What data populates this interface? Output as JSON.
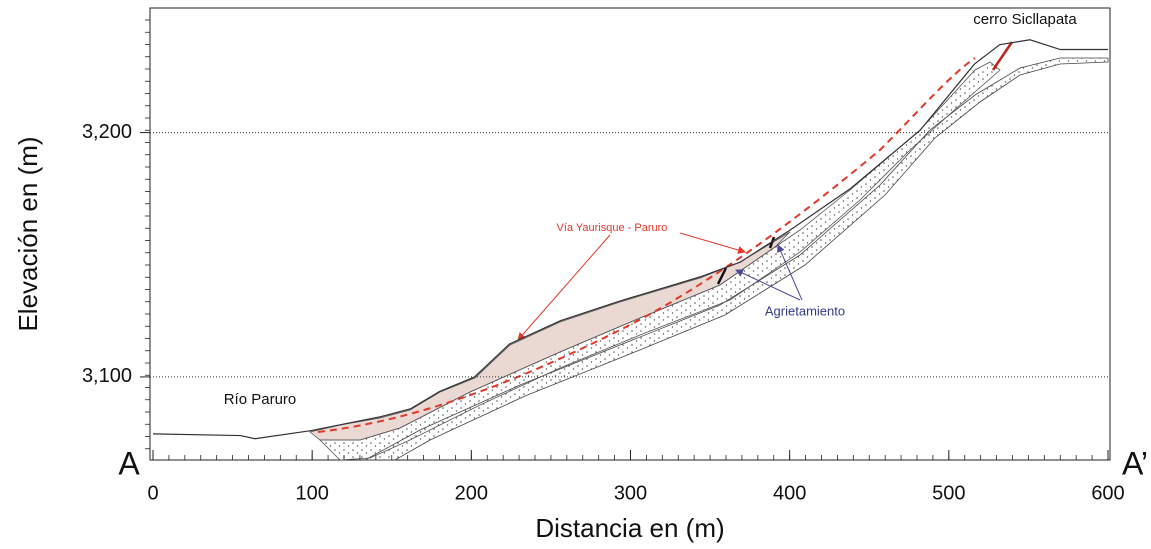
{
  "chart_data": {
    "type": "profile",
    "x_label": "Distancia en (m)",
    "y_label": "Elevación en (m)",
    "x": [
      0,
      55,
      64,
      99,
      143,
      162,
      180,
      202,
      224,
      256,
      293,
      344,
      369,
      400,
      438,
      482,
      516,
      532,
      551,
      570,
      600
    ],
    "values": [
      3076.7,
      3076,
      3074.7,
      3078,
      3083.7,
      3087,
      3094,
      3100,
      3113.5,
      3123,
      3131,
      3141,
      3147,
      3160,
      3177,
      3201,
      3228,
      3236,
      3238,
      3234,
      3234
    ],
    "color": "#333333",
    "xlim": [
      0,
      600
    ],
    "xticks": [
      0,
      100,
      200,
      300,
      400,
      500,
      600
    ],
    "ylim": [
      3066,
      3251
    ],
    "yticks": [
      {
        "value": 3100,
        "label": "3,100"
      },
      {
        "value": 3200,
        "label": "3,200"
      }
    ],
    "grid": true,
    "annotations": {
      "start": "A",
      "end": "A’",
      "river": "Río Paruro",
      "hill": "cerro Sicllapata",
      "road": "Vía Yaurisque - Paruro",
      "cracks": "Agrietamiento"
    }
  }
}
